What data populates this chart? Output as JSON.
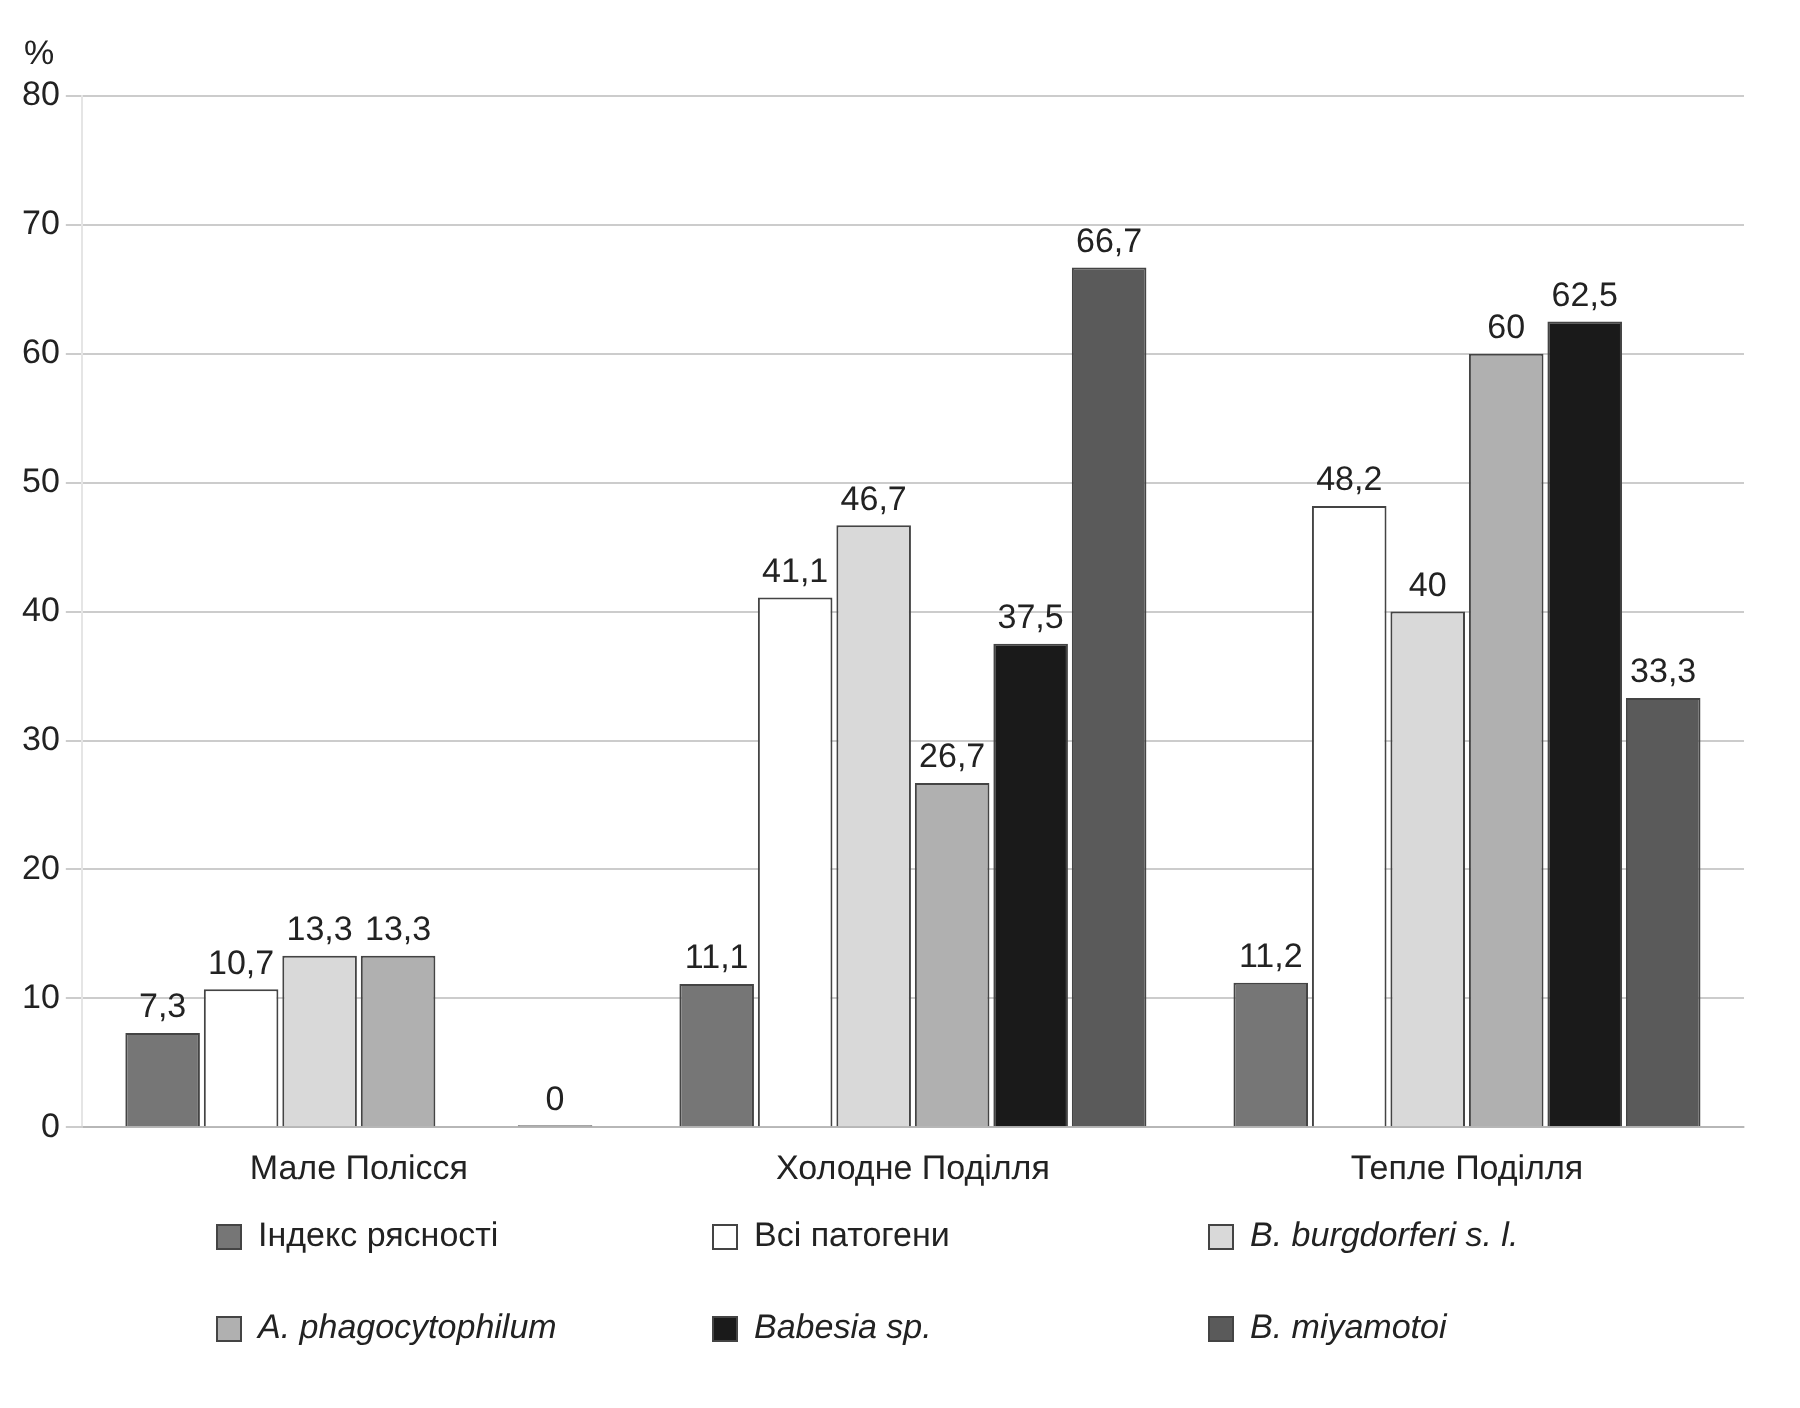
{
  "chart_data": {
    "type": "bar",
    "ylabel": "%",
    "categories": [
      "Мале Полісся",
      "Холодне Поділля",
      "Тепле Поділля"
    ],
    "series": [
      {
        "name": "Індекс рясності",
        "color": "#767676",
        "values": [
          7.3,
          11.1,
          11.2
        ],
        "value_labels": [
          "7,3",
          "11,1",
          "11,2"
        ]
      },
      {
        "name": "Всі патогени",
        "color": "#ffffff",
        "values": [
          10.7,
          41.1,
          48.2
        ],
        "value_labels": [
          "10,7",
          "41,1",
          "48,2"
        ]
      },
      {
        "name": "B. burgdorferi s. l.",
        "color": "#d9d9d9",
        "values": [
          13.3,
          46.7,
          40
        ],
        "value_labels": [
          "13,3",
          "46,7",
          "40"
        ]
      },
      {
        "name": "A. phagocytophilum",
        "color": "#b0b0b0",
        "values": [
          13.3,
          26.7,
          60
        ],
        "value_labels": [
          "13,3",
          "26,7",
          "60"
        ]
      },
      {
        "name": "Babesia sp.",
        "color": "#1a1a1a",
        "values": [
          null,
          37.5,
          62.5
        ],
        "value_labels": [
          null,
          "37,5",
          "62,5"
        ]
      },
      {
        "name": "B. miyamotoi",
        "color": "#5a5a5a",
        "values": [
          0,
          66.7,
          33.3
        ],
        "value_labels": [
          "0",
          "66,7",
          "33,3"
        ]
      }
    ],
    "ylim": [
      0,
      80
    ],
    "yticks": [
      0,
      10,
      20,
      30,
      40,
      50,
      60,
      70,
      80
    ],
    "grid": "y",
    "legend": "bottom"
  }
}
